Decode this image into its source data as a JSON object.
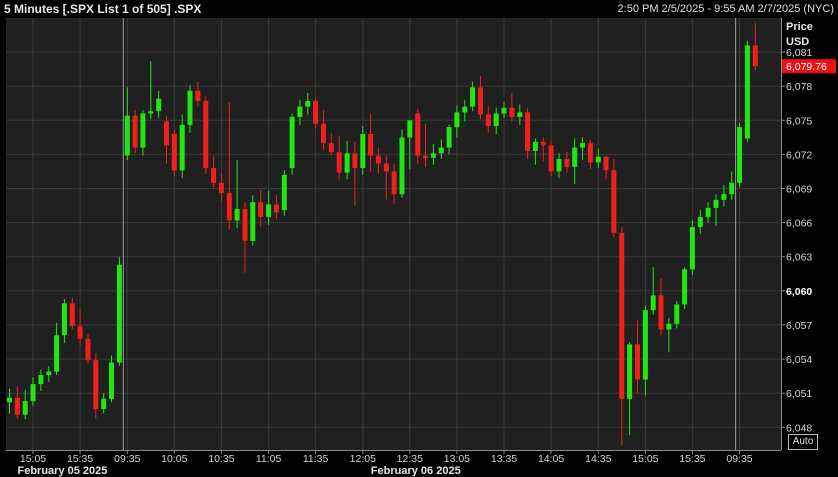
{
  "header": {
    "title": "5 Minutes [.SPX List 1 of 505] .SPX",
    "date_range": "2:50 PM 2/5/2025 - 9:55 AM 2/7/2025 (NYC)"
  },
  "axis": {
    "price_label": "Price",
    "currency_label": "USD",
    "auto_label": "Auto"
  },
  "last_price_label": "6,079.76",
  "colors": {
    "background": "#000000",
    "plot_background": "#1f201f",
    "grid": "#3a3a38",
    "up": "#22e614",
    "down": "#f0201a",
    "last_price_box": "#e81414"
  },
  "chart_data": {
    "type": "candlestick",
    "ylim": [
      6046,
      6084
    ],
    "y_ticks": [
      "6,048",
      "6,051",
      "6,054",
      "6,057",
      "6,060",
      "6,063",
      "6,066",
      "6,069",
      "6,072",
      "6,075",
      "6,078",
      "6,081"
    ],
    "y_tick_values": [
      6048,
      6051,
      6054,
      6057,
      6060,
      6063,
      6066,
      6069,
      6072,
      6075,
      6078,
      6081
    ],
    "y_bold_tick": "6,060",
    "x_ticks": [
      "15:05",
      "15:35",
      "09:35",
      "10:05",
      "10:35",
      "11:05",
      "11:35",
      "12:05",
      "12:35",
      "13:05",
      "13:35",
      "14:05",
      "14:35",
      "15:05",
      "15:35",
      "09:35"
    ],
    "x_tick_bar_index": [
      3,
      9,
      15,
      21,
      27,
      33,
      39,
      45,
      51,
      57,
      63,
      69,
      75,
      81,
      87,
      93
    ],
    "date_labels": [
      {
        "text": "February 05 2025",
        "bar_index": 0
      },
      {
        "text": "February 06 2025",
        "bar_index": 45
      }
    ],
    "day_separators_bar_index": [
      14,
      92
    ],
    "last_price": 6079.76,
    "candles": [
      {
        "o": 6050.2,
        "h": 6051.4,
        "l": 6049.2,
        "c": 6050.6
      },
      {
        "o": 6050.6,
        "h": 6051.6,
        "l": 6048.8,
        "c": 6049.1
      },
      {
        "o": 6049.1,
        "h": 6051.3,
        "l": 6048.7,
        "c": 6050.3
      },
      {
        "o": 6050.3,
        "h": 6052.4,
        "l": 6049.9,
        "c": 6051.8
      },
      {
        "o": 6051.8,
        "h": 6053.1,
        "l": 6051.2,
        "c": 6052.6
      },
      {
        "o": 6052.6,
        "h": 6053.4,
        "l": 6052.0,
        "c": 6052.9
      },
      {
        "o": 6052.9,
        "h": 6057.2,
        "l": 6052.6,
        "c": 6056.1
      },
      {
        "o": 6056.1,
        "h": 6059.3,
        "l": 6055.4,
        "c": 6058.9
      },
      {
        "o": 6058.9,
        "h": 6059.4,
        "l": 6056.6,
        "c": 6056.9
      },
      {
        "o": 6056.9,
        "h": 6058.4,
        "l": 6055.2,
        "c": 6055.8
      },
      {
        "o": 6055.8,
        "h": 6056.2,
        "l": 6053.6,
        "c": 6053.9
      },
      {
        "o": 6053.9,
        "h": 6054.5,
        "l": 6048.8,
        "c": 6049.6
      },
      {
        "o": 6049.6,
        "h": 6051.0,
        "l": 6049.2,
        "c": 6050.5
      },
      {
        "o": 6050.5,
        "h": 6054.3,
        "l": 6050.2,
        "c": 6053.7
      },
      {
        "o": 6053.7,
        "h": 6063.0,
        "l": 6053.4,
        "c": 6062.3
      },
      {
        "o": 6071.9,
        "h": 6077.9,
        "l": 6071.5,
        "c": 6075.4
      },
      {
        "o": 6075.4,
        "h": 6075.9,
        "l": 6072.1,
        "c": 6072.6
      },
      {
        "o": 6072.6,
        "h": 6075.9,
        "l": 6071.9,
        "c": 6075.6
      },
      {
        "o": 6075.6,
        "h": 6080.2,
        "l": 6075.1,
        "c": 6075.8
      },
      {
        "o": 6075.8,
        "h": 6077.6,
        "l": 6075.2,
        "c": 6076.9
      },
      {
        "o": 6074.9,
        "h": 6075.4,
        "l": 6071.2,
        "c": 6072.8
      },
      {
        "o": 6073.8,
        "h": 6074.2,
        "l": 6070.1,
        "c": 6070.6
      },
      {
        "o": 6070.6,
        "h": 6075.5,
        "l": 6069.9,
        "c": 6074.6
      },
      {
        "o": 6074.6,
        "h": 6078.1,
        "l": 6073.9,
        "c": 6077.6
      },
      {
        "o": 6077.6,
        "h": 6078.4,
        "l": 6076.2,
        "c": 6076.7
      },
      {
        "o": 6076.7,
        "h": 6077.1,
        "l": 6070.3,
        "c": 6070.8
      },
      {
        "o": 6070.8,
        "h": 6071.9,
        "l": 6069.1,
        "c": 6069.5
      },
      {
        "o": 6069.5,
        "h": 6070.3,
        "l": 6067.9,
        "c": 6068.6
      },
      {
        "o": 6068.6,
        "h": 6076.6,
        "l": 6065.4,
        "c": 6066.2
      },
      {
        "o": 6066.2,
        "h": 6071.5,
        "l": 6065.5,
        "c": 6067.2
      },
      {
        "o": 6067.2,
        "h": 6067.8,
        "l": 6061.6,
        "c": 6064.4
      },
      {
        "o": 6064.4,
        "h": 6068.4,
        "l": 6064.0,
        "c": 6067.8
      },
      {
        "o": 6067.8,
        "h": 6068.9,
        "l": 6065.6,
        "c": 6066.5
      },
      {
        "o": 6066.5,
        "h": 6068.8,
        "l": 6065.8,
        "c": 6067.6
      },
      {
        "o": 6067.6,
        "h": 6068.4,
        "l": 6066.3,
        "c": 6066.9
      },
      {
        "o": 6067.1,
        "h": 6070.6,
        "l": 6066.6,
        "c": 6070.2
      },
      {
        "o": 6070.8,
        "h": 6075.6,
        "l": 6070.2,
        "c": 6075.3
      },
      {
        "o": 6075.3,
        "h": 6076.8,
        "l": 6074.6,
        "c": 6076.2
      },
      {
        "o": 6076.2,
        "h": 6077.4,
        "l": 6075.5,
        "c": 6076.7
      },
      {
        "o": 6076.7,
        "h": 6077.0,
        "l": 6074.3,
        "c": 6074.7
      },
      {
        "o": 6074.7,
        "h": 6075.9,
        "l": 6072.4,
        "c": 6073.0
      },
      {
        "o": 6073.0,
        "h": 6073.9,
        "l": 6071.9,
        "c": 6072.2
      },
      {
        "o": 6072.2,
        "h": 6073.6,
        "l": 6069.8,
        "c": 6070.4
      },
      {
        "o": 6070.4,
        "h": 6073.2,
        "l": 6069.8,
        "c": 6072.1
      },
      {
        "o": 6072.1,
        "h": 6073.1,
        "l": 6067.5,
        "c": 6070.8
      },
      {
        "o": 6070.8,
        "h": 6074.5,
        "l": 6070.2,
        "c": 6073.8
      },
      {
        "o": 6073.8,
        "h": 6075.6,
        "l": 6070.5,
        "c": 6071.9
      },
      {
        "o": 6071.9,
        "h": 6072.6,
        "l": 6070.3,
        "c": 6071.2
      },
      {
        "o": 6071.2,
        "h": 6071.9,
        "l": 6068.0,
        "c": 6070.5
      },
      {
        "o": 6070.5,
        "h": 6071.2,
        "l": 6067.6,
        "c": 6068.5
      },
      {
        "o": 6068.5,
        "h": 6074.2,
        "l": 6068.2,
        "c": 6073.5
      },
      {
        "o": 6073.5,
        "h": 6075.0,
        "l": 6070.7,
        "c": 6075.0
      },
      {
        "o": 6075.6,
        "h": 6076.0,
        "l": 6071.2,
        "c": 6071.9
      },
      {
        "o": 6071.9,
        "h": 6074.7,
        "l": 6070.9,
        "c": 6071.7
      },
      {
        "o": 6071.7,
        "h": 6072.9,
        "l": 6071.1,
        "c": 6072.1
      },
      {
        "o": 6072.1,
        "h": 6073.3,
        "l": 6071.6,
        "c": 6072.6
      },
      {
        "o": 6072.6,
        "h": 6074.6,
        "l": 6072.0,
        "c": 6074.4
      },
      {
        "o": 6074.4,
        "h": 6076.3,
        "l": 6073.5,
        "c": 6075.7
      },
      {
        "o": 6075.7,
        "h": 6076.8,
        "l": 6074.9,
        "c": 6076.2
      },
      {
        "o": 6076.2,
        "h": 6078.4,
        "l": 6075.8,
        "c": 6077.9
      },
      {
        "o": 6077.9,
        "h": 6078.9,
        "l": 6075.1,
        "c": 6075.5
      },
      {
        "o": 6075.5,
        "h": 6076.2,
        "l": 6073.9,
        "c": 6074.5
      },
      {
        "o": 6074.5,
        "h": 6076.1,
        "l": 6073.8,
        "c": 6075.6
      },
      {
        "o": 6075.6,
        "h": 6076.6,
        "l": 6075.2,
        "c": 6076.1
      },
      {
        "o": 6076.1,
        "h": 6077.4,
        "l": 6074.9,
        "c": 6075.3
      },
      {
        "o": 6075.3,
        "h": 6076.4,
        "l": 6074.6,
        "c": 6075.7
      },
      {
        "o": 6075.7,
        "h": 6076.1,
        "l": 6071.6,
        "c": 6072.3
      },
      {
        "o": 6072.3,
        "h": 6073.4,
        "l": 6071.1,
        "c": 6073.1
      },
      {
        "o": 6073.1,
        "h": 6073.5,
        "l": 6071.4,
        "c": 6072.8
      },
      {
        "o": 6072.8,
        "h": 6073.2,
        "l": 6070.1,
        "c": 6070.5
      },
      {
        "o": 6070.5,
        "h": 6072.1,
        "l": 6069.9,
        "c": 6071.6
      },
      {
        "o": 6071.6,
        "h": 6072.2,
        "l": 6070.4,
        "c": 6070.9
      },
      {
        "o": 6070.9,
        "h": 6073.4,
        "l": 6069.4,
        "c": 6072.6
      },
      {
        "o": 6072.6,
        "h": 6073.5,
        "l": 6071.5,
        "c": 6073.0
      },
      {
        "o": 6073.0,
        "h": 6073.3,
        "l": 6070.7,
        "c": 6071.3
      },
      {
        "o": 6071.3,
        "h": 6072.5,
        "l": 6070.8,
        "c": 6071.8
      },
      {
        "o": 6071.8,
        "h": 6071.9,
        "l": 6069.8,
        "c": 6070.6
      },
      {
        "o": 6070.6,
        "h": 6071.6,
        "l": 6064.7,
        "c": 6065.1
      },
      {
        "o": 6065.1,
        "h": 6065.6,
        "l": 6046.4,
        "c": 6050.5
      },
      {
        "o": 6050.5,
        "h": 6055.5,
        "l": 6047.3,
        "c": 6055.3
      },
      {
        "o": 6055.3,
        "h": 6057.4,
        "l": 6051.0,
        "c": 6052.2
      },
      {
        "o": 6052.2,
        "h": 6058.7,
        "l": 6050.8,
        "c": 6058.3
      },
      {
        "o": 6058.3,
        "h": 6062.1,
        "l": 6057.9,
        "c": 6059.6
      },
      {
        "o": 6059.6,
        "h": 6061.1,
        "l": 6056.1,
        "c": 6056.6
      },
      {
        "o": 6056.6,
        "h": 6057.6,
        "l": 6054.6,
        "c": 6057.1
      },
      {
        "o": 6057.1,
        "h": 6059.1,
        "l": 6056.7,
        "c": 6058.8
      },
      {
        "o": 6058.8,
        "h": 6062.1,
        "l": 6058.4,
        "c": 6061.9
      },
      {
        "o": 6061.9,
        "h": 6066.2,
        "l": 6061.4,
        "c": 6065.6
      },
      {
        "o": 6065.6,
        "h": 6067.1,
        "l": 6065.0,
        "c": 6066.5
      },
      {
        "o": 6066.5,
        "h": 6067.8,
        "l": 6066.0,
        "c": 6067.3
      },
      {
        "o": 6067.3,
        "h": 6068.5,
        "l": 6065.7,
        "c": 6068.0
      },
      {
        "o": 6068.0,
        "h": 6069.3,
        "l": 6067.4,
        "c": 6068.5
      },
      {
        "o": 6068.5,
        "h": 6070.5,
        "l": 6068.0,
        "c": 6069.5
      },
      {
        "o": 6069.5,
        "h": 6074.8,
        "l": 6069.1,
        "c": 6074.4
      },
      {
        "o": 6073.4,
        "h": 6082.0,
        "l": 6073.1,
        "c": 6081.6
      },
      {
        "o": 6081.6,
        "h": 6083.6,
        "l": 6079.4,
        "c": 6079.76
      }
    ]
  }
}
